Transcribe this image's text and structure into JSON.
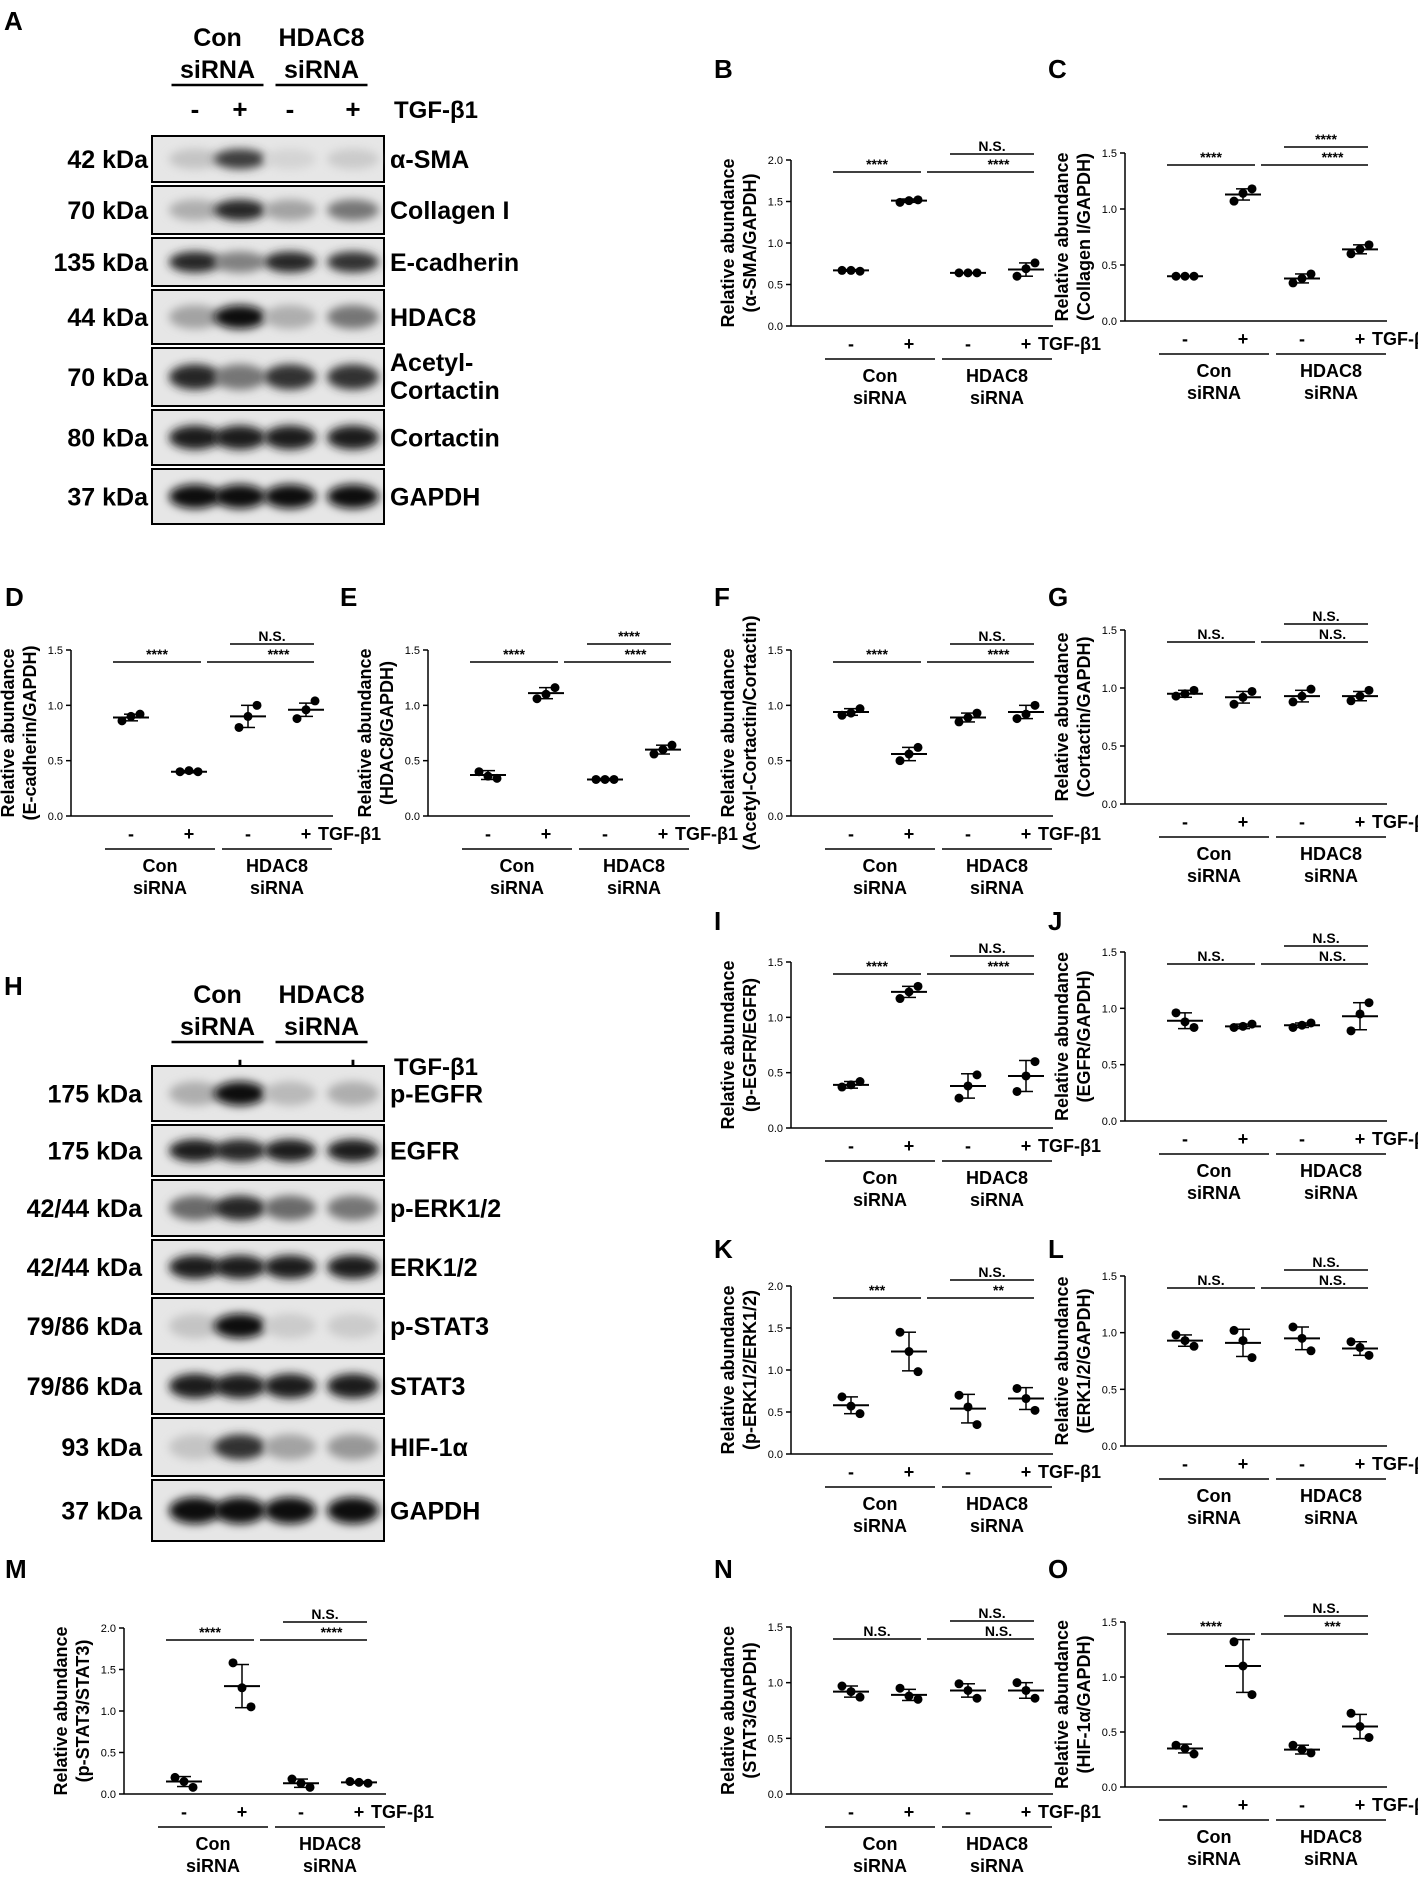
{
  "conditions": {
    "group1": [
      "Con",
      "siRNA"
    ],
    "group2": [
      "HDAC8",
      "siRNA"
    ],
    "treatment": "TGF-β1",
    "signs": [
      "-",
      "+",
      "-",
      "+"
    ]
  },
  "blot_panels": [
    {
      "letter": "A",
      "bands": [
        {
          "mw": "42 kDa",
          "protein": [
            "α-SMA"
          ],
          "intensity": [
            0.15,
            0.75,
            0.08,
            0.12
          ]
        },
        {
          "mw": "70 kDa",
          "protein": [
            "Collagen I"
          ],
          "intensity": [
            0.25,
            0.85,
            0.3,
            0.5
          ]
        },
        {
          "mw": "135 kDa",
          "protein": [
            "E-cadherin"
          ],
          "intensity": [
            0.85,
            0.45,
            0.85,
            0.8
          ]
        },
        {
          "mw": "44 kDa",
          "protein": [
            "HDAC8"
          ],
          "intensity": [
            0.3,
            0.95,
            0.25,
            0.5
          ]
        },
        {
          "mw": "70 kDa",
          "protein": [
            "Acetyl-",
            "Cortactin"
          ],
          "intensity": [
            0.85,
            0.5,
            0.8,
            0.8
          ]
        },
        {
          "mw": "80 kDa",
          "protein": [
            "Cortactin"
          ],
          "intensity": [
            0.9,
            0.9,
            0.9,
            0.9
          ]
        },
        {
          "mw": "37 kDa",
          "protein": [
            "GAPDH"
          ],
          "intensity": [
            0.95,
            0.95,
            0.95,
            0.95
          ]
        }
      ]
    },
    {
      "letter": "H",
      "bands": [
        {
          "mw": "175 kDa",
          "protein": [
            "p-EGFR"
          ],
          "intensity": [
            0.25,
            0.95,
            0.2,
            0.25
          ]
        },
        {
          "mw": "175 kDa",
          "protein": [
            "EGFR"
          ],
          "intensity": [
            0.9,
            0.85,
            0.9,
            0.9
          ]
        },
        {
          "mw": "42/44 kDa",
          "protein": [
            "p-ERK1/2"
          ],
          "intensity": [
            0.55,
            0.85,
            0.55,
            0.5
          ]
        },
        {
          "mw": "42/44 kDa",
          "protein": [
            "ERK1/2"
          ],
          "intensity": [
            0.9,
            0.9,
            0.9,
            0.9
          ]
        },
        {
          "mw": "79/86 kDa",
          "protein": [
            "p-STAT3"
          ],
          "intensity": [
            0.15,
            0.95,
            0.12,
            0.12
          ]
        },
        {
          "mw": "79/86 kDa",
          "protein": [
            "STAT3"
          ],
          "intensity": [
            0.9,
            0.9,
            0.9,
            0.9
          ]
        },
        {
          "mw": "93 kDa",
          "protein": [
            "HIF-1α"
          ],
          "intensity": [
            0.15,
            0.8,
            0.3,
            0.35
          ]
        },
        {
          "mw": "37 kDa",
          "protein": [
            "GAPDH"
          ],
          "intensity": [
            0.95,
            0.95,
            0.95,
            0.95
          ]
        }
      ]
    }
  ],
  "chart_data": [
    {
      "letter": "B",
      "type": "scatter",
      "ylabel": [
        "Relative abundance",
        "(α-SMA/GAPDH)"
      ],
      "ylim": [
        0,
        2.0
      ],
      "yticks": [
        "0.0",
        "0.5",
        "1.0",
        "1.5",
        "2.0"
      ],
      "groups": [
        {
          "points": [
            0.67,
            0.66,
            0.67
          ],
          "mean": 0.67,
          "sd": 0.01
        },
        {
          "points": [
            1.49,
            1.52,
            1.51
          ],
          "mean": 1.51,
          "sd": 0.02
        },
        {
          "points": [
            0.64,
            0.64,
            0.64
          ],
          "mean": 0.64,
          "sd": 0.0
        },
        {
          "points": [
            0.6,
            0.76,
            0.69
          ],
          "mean": 0.68,
          "sd": 0.08
        }
      ],
      "sig": [
        {
          "from": 0,
          "to": 1,
          "label": "****"
        },
        {
          "from": 2,
          "to": 3,
          "label": "N.S."
        },
        {
          "from": 1,
          "to": 3,
          "label": "****"
        }
      ]
    },
    {
      "letter": "C",
      "type": "scatter",
      "ylabel": [
        "Relative abundance",
        "(Collagen I/GAPDH)"
      ],
      "ylim": [
        0,
        1.5
      ],
      "yticks": [
        "0.0",
        "0.5",
        "1.0",
        "1.5"
      ],
      "groups": [
        {
          "points": [
            0.4,
            0.4,
            0.4
          ],
          "mean": 0.4,
          "sd": 0.0
        },
        {
          "points": [
            1.07,
            1.18,
            1.14
          ],
          "mean": 1.13,
          "sd": 0.05
        },
        {
          "points": [
            0.34,
            0.42,
            0.38
          ],
          "mean": 0.38,
          "sd": 0.04
        },
        {
          "points": [
            0.6,
            0.68,
            0.64
          ],
          "mean": 0.64,
          "sd": 0.04
        }
      ],
      "sig": [
        {
          "from": 0,
          "to": 1,
          "label": "****"
        },
        {
          "from": 2,
          "to": 3,
          "label": "****"
        },
        {
          "from": 1,
          "to": 3,
          "label": "****"
        }
      ]
    },
    {
      "letter": "D",
      "type": "scatter",
      "ylabel": [
        "Relative abundance",
        "(E-cadherin/GAPDH)"
      ],
      "ylim": [
        0,
        1.5
      ],
      "yticks": [
        "0.0",
        "0.5",
        "1.0",
        "1.5"
      ],
      "groups": [
        {
          "points": [
            0.86,
            0.92,
            0.9
          ],
          "mean": 0.89,
          "sd": 0.03
        },
        {
          "points": [
            0.4,
            0.4,
            0.41
          ],
          "mean": 0.4,
          "sd": 0.01
        },
        {
          "points": [
            0.8,
            1.0,
            0.9
          ],
          "mean": 0.9,
          "sd": 0.1
        },
        {
          "points": [
            0.88,
            1.04,
            0.96
          ],
          "mean": 0.96,
          "sd": 0.06
        }
      ],
      "sig": [
        {
          "from": 0,
          "to": 1,
          "label": "****"
        },
        {
          "from": 2,
          "to": 3,
          "label": "N.S."
        },
        {
          "from": 1,
          "to": 3,
          "label": "****"
        }
      ]
    },
    {
      "letter": "E",
      "type": "scatter",
      "ylabel": [
        "Relative abundance",
        "(HDAC8/GAPDH)"
      ],
      "ylim": [
        0,
        1.5
      ],
      "yticks": [
        "0.0",
        "0.5",
        "1.0",
        "1.5"
      ],
      "groups": [
        {
          "points": [
            0.4,
            0.34,
            0.36
          ],
          "mean": 0.37,
          "sd": 0.04
        },
        {
          "points": [
            1.06,
            1.16,
            1.1
          ],
          "mean": 1.11,
          "sd": 0.05
        },
        {
          "points": [
            0.33,
            0.33,
            0.33
          ],
          "mean": 0.33,
          "sd": 0.01
        },
        {
          "points": [
            0.56,
            0.64,
            0.6
          ],
          "mean": 0.6,
          "sd": 0.04
        }
      ],
      "sig": [
        {
          "from": 0,
          "to": 1,
          "label": "****"
        },
        {
          "from": 2,
          "to": 3,
          "label": "****"
        },
        {
          "from": 1,
          "to": 3,
          "label": "****"
        }
      ]
    },
    {
      "letter": "F",
      "type": "scatter",
      "ylabel": [
        "Relative abundance",
        "(Acetyl-Cortactin/Cortactin)"
      ],
      "ylim": [
        0,
        1.5
      ],
      "yticks": [
        "0.0",
        "0.5",
        "1.0",
        "1.5"
      ],
      "groups": [
        {
          "points": [
            0.91,
            0.97,
            0.93
          ],
          "mean": 0.94,
          "sd": 0.03
        },
        {
          "points": [
            0.5,
            0.62,
            0.56
          ],
          "mean": 0.56,
          "sd": 0.06
        },
        {
          "points": [
            0.85,
            0.93,
            0.89
          ],
          "mean": 0.89,
          "sd": 0.04
        },
        {
          "points": [
            0.88,
            1.0,
            0.92
          ],
          "mean": 0.94,
          "sd": 0.06
        }
      ],
      "sig": [
        {
          "from": 0,
          "to": 1,
          "label": "****"
        },
        {
          "from": 2,
          "to": 3,
          "label": "N.S."
        },
        {
          "from": 1,
          "to": 3,
          "label": "****"
        }
      ]
    },
    {
      "letter": "G",
      "type": "scatter",
      "ylabel": [
        "Relative abundance",
        "(Cortactin/GAPDH)"
      ],
      "ylim": [
        0,
        1.5
      ],
      "yticks": [
        "0.0",
        "0.5",
        "1.0",
        "1.5"
      ],
      "groups": [
        {
          "points": [
            0.93,
            0.98,
            0.95
          ],
          "mean": 0.95,
          "sd": 0.03
        },
        {
          "points": [
            0.86,
            0.97,
            0.92
          ],
          "mean": 0.92,
          "sd": 0.05
        },
        {
          "points": [
            0.88,
            0.99,
            0.93
          ],
          "mean": 0.93,
          "sd": 0.05
        },
        {
          "points": [
            0.89,
            0.98,
            0.93
          ],
          "mean": 0.93,
          "sd": 0.04
        }
      ],
      "sig": [
        {
          "from": 0,
          "to": 1,
          "label": "N.S."
        },
        {
          "from": 2,
          "to": 3,
          "label": "N.S."
        },
        {
          "from": 1,
          "to": 3,
          "label": "N.S."
        }
      ]
    },
    {
      "letter": "I",
      "type": "scatter",
      "ylabel": [
        "Relative abundance",
        "(p-EGFR/EGFR)"
      ],
      "ylim": [
        0,
        1.5
      ],
      "yticks": [
        "0.0",
        "0.5",
        "1.0",
        "1.5"
      ],
      "groups": [
        {
          "points": [
            0.37,
            0.42,
            0.39
          ],
          "mean": 0.39,
          "sd": 0.03
        },
        {
          "points": [
            1.17,
            1.28,
            1.23
          ],
          "mean": 1.23,
          "sd": 0.05
        },
        {
          "points": [
            0.27,
            0.48,
            0.38
          ],
          "mean": 0.38,
          "sd": 0.11
        },
        {
          "points": [
            0.33,
            0.6,
            0.47
          ],
          "mean": 0.47,
          "sd": 0.14
        }
      ],
      "sig": [
        {
          "from": 0,
          "to": 1,
          "label": "****"
        },
        {
          "from": 2,
          "to": 3,
          "label": "N.S."
        },
        {
          "from": 1,
          "to": 3,
          "label": "****"
        }
      ]
    },
    {
      "letter": "J",
      "type": "scatter",
      "ylabel": [
        "Relative abundance",
        "(EGFR/GAPDH)"
      ],
      "ylim": [
        0,
        1.5
      ],
      "yticks": [
        "0.0",
        "0.5",
        "1.0",
        "1.5"
      ],
      "groups": [
        {
          "points": [
            0.96,
            0.83,
            0.88
          ],
          "mean": 0.89,
          "sd": 0.07
        },
        {
          "points": [
            0.83,
            0.86,
            0.84
          ],
          "mean": 0.84,
          "sd": 0.02
        },
        {
          "points": [
            0.83,
            0.87,
            0.85
          ],
          "mean": 0.85,
          "sd": 0.02
        },
        {
          "points": [
            0.8,
            1.05,
            0.95
          ],
          "mean": 0.93,
          "sd": 0.12
        }
      ],
      "sig": [
        {
          "from": 0,
          "to": 1,
          "label": "N.S."
        },
        {
          "from": 2,
          "to": 3,
          "label": "N.S."
        },
        {
          "from": 1,
          "to": 3,
          "label": "N.S."
        }
      ]
    },
    {
      "letter": "K",
      "type": "scatter",
      "ylabel": [
        "Relative abundance",
        "(p-ERK1/2/ERK1/2)"
      ],
      "ylim": [
        0,
        2.0
      ],
      "yticks": [
        "0.0",
        "0.5",
        "1.0",
        "1.5",
        "2.0"
      ],
      "groups": [
        {
          "points": [
            0.68,
            0.48,
            0.57
          ],
          "mean": 0.58,
          "sd": 0.1
        },
        {
          "points": [
            1.45,
            0.98,
            1.22
          ],
          "mean": 1.22,
          "sd": 0.23
        },
        {
          "points": [
            0.7,
            0.35,
            0.56
          ],
          "mean": 0.54,
          "sd": 0.17
        },
        {
          "points": [
            0.78,
            0.52,
            0.66
          ],
          "mean": 0.66,
          "sd": 0.13
        }
      ],
      "sig": [
        {
          "from": 0,
          "to": 1,
          "label": "***"
        },
        {
          "from": 2,
          "to": 3,
          "label": "N.S."
        },
        {
          "from": 1,
          "to": 3,
          "label": "**"
        }
      ]
    },
    {
      "letter": "L",
      "type": "scatter",
      "ylabel": [
        "Relative abundance",
        "(ERK1/2/GAPDH)"
      ],
      "ylim": [
        0,
        1.5
      ],
      "yticks": [
        "0.0",
        "0.5",
        "1.0",
        "1.5"
      ],
      "groups": [
        {
          "points": [
            0.98,
            0.88,
            0.93
          ],
          "mean": 0.93,
          "sd": 0.05
        },
        {
          "points": [
            1.02,
            0.78,
            0.93
          ],
          "mean": 0.91,
          "sd": 0.12
        },
        {
          "points": [
            1.05,
            0.84,
            0.95
          ],
          "mean": 0.95,
          "sd": 0.1
        },
        {
          "points": [
            0.92,
            0.8,
            0.87
          ],
          "mean": 0.86,
          "sd": 0.06
        }
      ],
      "sig": [
        {
          "from": 0,
          "to": 1,
          "label": "N.S."
        },
        {
          "from": 2,
          "to": 3,
          "label": "N.S."
        },
        {
          "from": 1,
          "to": 3,
          "label": "N.S."
        }
      ]
    },
    {
      "letter": "M",
      "type": "scatter",
      "ylabel": [
        "Relative abundance",
        "(p-STAT3/STAT3)"
      ],
      "ylim": [
        0,
        2.0
      ],
      "yticks": [
        "0.0",
        "0.5",
        "1.0",
        "1.5",
        "2.0"
      ],
      "groups": [
        {
          "points": [
            0.2,
            0.08,
            0.15
          ],
          "mean": 0.15,
          "sd": 0.06
        },
        {
          "points": [
            1.58,
            1.05,
            1.28
          ],
          "mean": 1.3,
          "sd": 0.26
        },
        {
          "points": [
            0.18,
            0.08,
            0.13
          ],
          "mean": 0.13,
          "sd": 0.05
        },
        {
          "points": [
            0.15,
            0.13,
            0.14
          ],
          "mean": 0.14,
          "sd": 0.01
        }
      ],
      "sig": [
        {
          "from": 0,
          "to": 1,
          "label": "****"
        },
        {
          "from": 2,
          "to": 3,
          "label": "N.S."
        },
        {
          "from": 1,
          "to": 3,
          "label": "****"
        }
      ]
    },
    {
      "letter": "N",
      "type": "scatter",
      "ylabel": [
        "Relative abundance",
        "(STAT3/GAPDH)"
      ],
      "ylim": [
        0,
        1.5
      ],
      "yticks": [
        "0.0",
        "0.5",
        "1.0",
        "1.5"
      ],
      "groups": [
        {
          "points": [
            0.97,
            0.87,
            0.92
          ],
          "mean": 0.92,
          "sd": 0.05
        },
        {
          "points": [
            0.95,
            0.85,
            0.88
          ],
          "mean": 0.89,
          "sd": 0.05
        },
        {
          "points": [
            0.99,
            0.86,
            0.93
          ],
          "mean": 0.93,
          "sd": 0.06
        },
        {
          "points": [
            1.0,
            0.86,
            0.93
          ],
          "mean": 0.93,
          "sd": 0.07
        }
      ],
      "sig": [
        {
          "from": 0,
          "to": 1,
          "label": "N.S."
        },
        {
          "from": 2,
          "to": 3,
          "label": "N.S."
        },
        {
          "from": 1,
          "to": 3,
          "label": "N.S."
        }
      ]
    },
    {
      "letter": "O",
      "type": "scatter",
      "ylabel": [
        "Relative abundance",
        "(HIF-1α/GAPDH)"
      ],
      "ylim": [
        0,
        1.5
      ],
      "yticks": [
        "0.0",
        "0.5",
        "1.0",
        "1.5"
      ],
      "groups": [
        {
          "points": [
            0.38,
            0.3,
            0.35
          ],
          "mean": 0.35,
          "sd": 0.04
        },
        {
          "points": [
            1.32,
            0.84,
            1.1
          ],
          "mean": 1.1,
          "sd": 0.24
        },
        {
          "points": [
            0.38,
            0.31,
            0.34
          ],
          "mean": 0.34,
          "sd": 0.04
        },
        {
          "points": [
            0.67,
            0.45,
            0.55
          ],
          "mean": 0.55,
          "sd": 0.11
        }
      ],
      "sig": [
        {
          "from": 0,
          "to": 1,
          "label": "****"
        },
        {
          "from": 2,
          "to": 3,
          "label": "N.S."
        },
        {
          "from": 1,
          "to": 3,
          "label": "***"
        }
      ]
    }
  ]
}
